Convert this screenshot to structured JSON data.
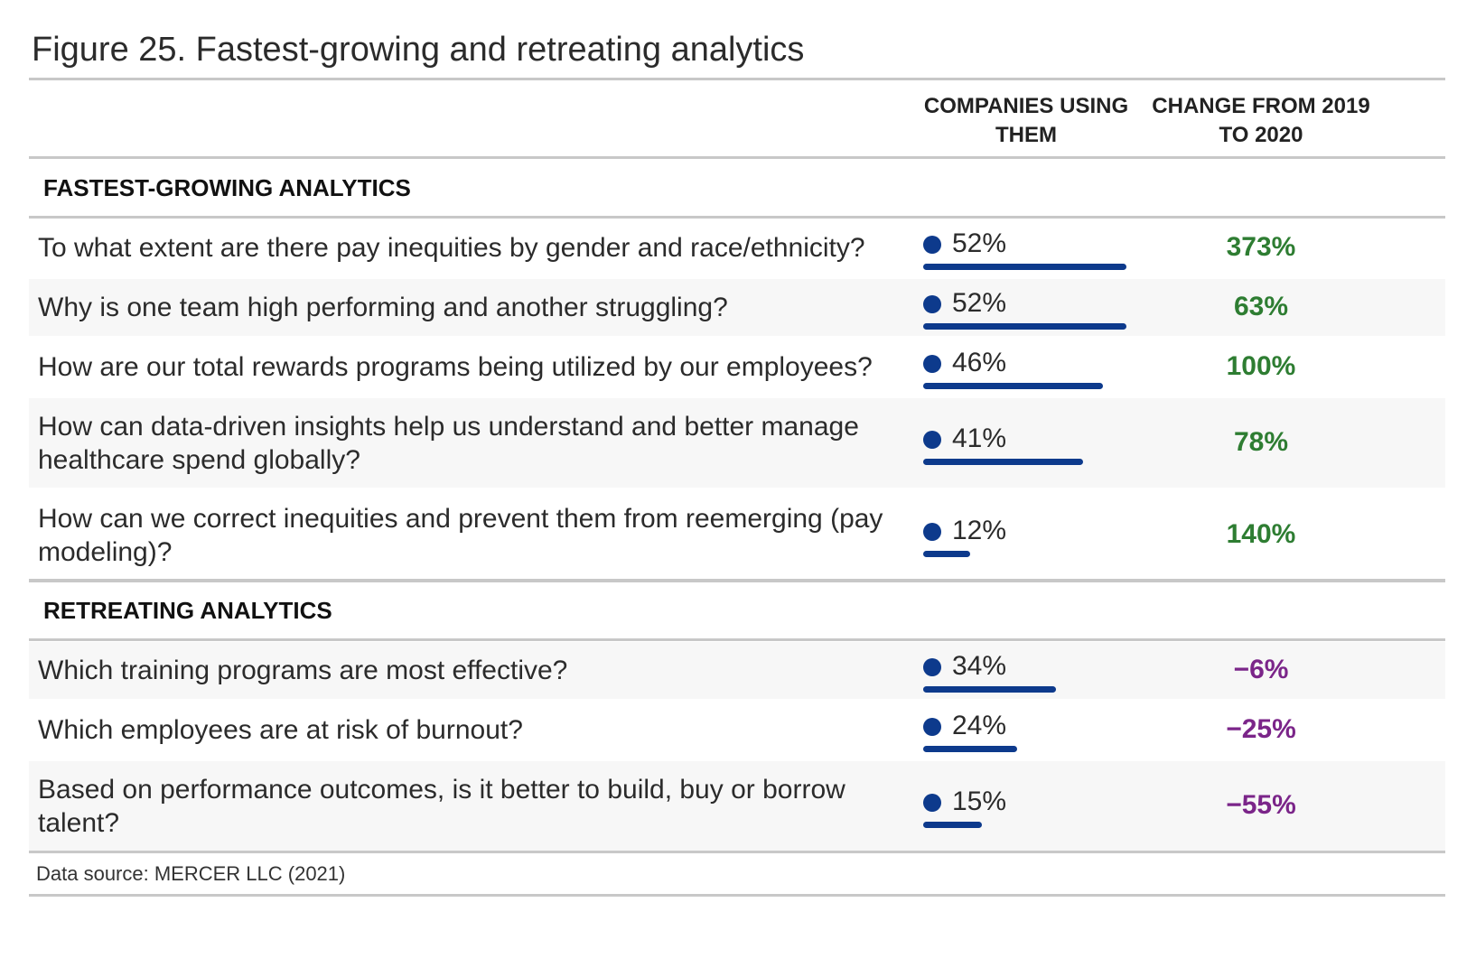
{
  "title": "Figure 25. Fastest-growing and retreating analytics",
  "columns": {
    "companies_line1": "COMPANIES USING",
    "companies_line2": "THEM",
    "change_line1": "CHANGE FROM 2019",
    "change_line2": "TO 2020"
  },
  "source": "Data source: MERCER LLC (2021)",
  "colors": {
    "bar": "#0d3a8c",
    "positive": "#2e7d32",
    "negative": "#7b2589"
  },
  "chart_data": {
    "type": "table",
    "title": "Figure 25. Fastest-growing and retreating analytics",
    "sections": [
      {
        "name": "FASTEST-GROWING ANALYTICS",
        "rows": [
          {
            "question": "To what extent are there pay inequities by gender and race/ethnicity?",
            "companies_using": 52,
            "companies_label": "52%",
            "change": 373,
            "change_label": "373%"
          },
          {
            "question": "Why is one team high performing and another struggling?",
            "companies_using": 52,
            "companies_label": "52%",
            "change": 63,
            "change_label": "63%"
          },
          {
            "question": "How are our total rewards programs being utilized by our employees?",
            "companies_using": 46,
            "companies_label": "46%",
            "change": 100,
            "change_label": "100%"
          },
          {
            "question": "How can data-driven insights help us understand and better manage healthcare spend globally?",
            "companies_using": 41,
            "companies_label": "41%",
            "change": 78,
            "change_label": "78%"
          },
          {
            "question": "How can we correct inequities and prevent them from reemerging (pay modeling)?",
            "companies_using": 12,
            "companies_label": "12%",
            "change": 140,
            "change_label": "140%"
          }
        ]
      },
      {
        "name": "RETREATING ANALYTICS",
        "rows": [
          {
            "question": "Which training programs are most effective?",
            "companies_using": 34,
            "companies_label": "34%",
            "change": -6,
            "change_label": "−6%"
          },
          {
            "question": "Which employees are at risk of burnout?",
            "companies_using": 24,
            "companies_label": "24%",
            "change": -25,
            "change_label": "−25%"
          },
          {
            "question": "Based on performance outcomes, is it better to build, buy or borrow talent?",
            "companies_using": 15,
            "companies_label": "15%",
            "change": -55,
            "change_label": "−55%"
          }
        ]
      }
    ]
  }
}
